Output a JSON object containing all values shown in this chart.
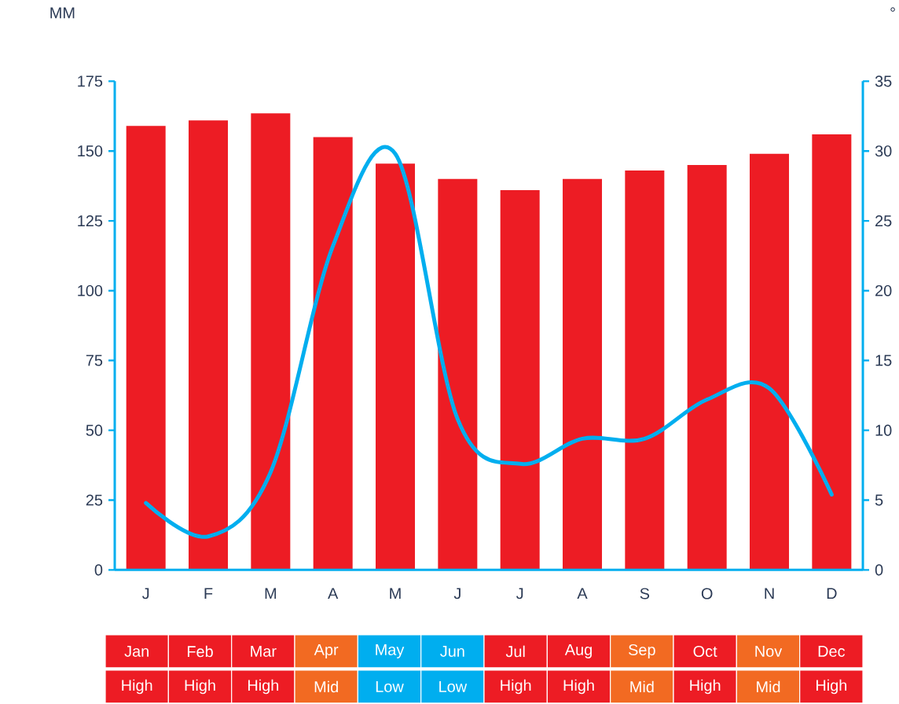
{
  "chart_data": [
    {
      "type": "bar",
      "ylabel": "MM",
      "y2label": "°",
      "categories": [
        "J",
        "F",
        "M",
        "A",
        "M",
        "J",
        "J",
        "A",
        "S",
        "O",
        "N",
        "D"
      ],
      "series": [
        {
          "type": "bar",
          "axis": "y2",
          "color": "#ed1c24",
          "values": [
            31.8,
            32.2,
            32.7,
            31,
            29.1,
            28,
            27.2,
            28,
            28.6,
            29,
            29.8,
            31.2
          ]
        },
        {
          "type": "line",
          "color": "#00aeef",
          "values": [
            24,
            12,
            35,
            116,
            149,
            54,
            38,
            47,
            47,
            61,
            65,
            27
          ]
        }
      ],
      "ylim": [
        0,
        175
      ],
      "yticks": [
        0,
        25,
        50,
        75,
        100,
        125,
        150,
        175
      ],
      "y2lim": [
        0,
        35
      ],
      "y2ticks": [
        0,
        5,
        10,
        15,
        20,
        25,
        30,
        35
      ]
    },
    {
      "type": "other",
      "categories": [
        "Jan",
        "Feb",
        "Mar",
        "Apr",
        "May",
        "Jun",
        "Jul",
        "Aug",
        "Sep",
        "Oct",
        "Nov",
        "Dec"
      ],
      "annotations": [
        "High",
        "High",
        "High",
        "Mid",
        "Low",
        "Low",
        "High",
        "High",
        "Mid",
        "High",
        "Mid",
        "High"
      ],
      "colors": [
        "#ed1c24",
        "#ed1c24",
        "#ed1c24",
        "#f26a22",
        "#00aeef",
        "#00aeef",
        "#ed1c24",
        "#ed1c24",
        "#f26a22",
        "#ed1c24",
        "#f26a22",
        "#ed1c24"
      ]
    }
  ]
}
